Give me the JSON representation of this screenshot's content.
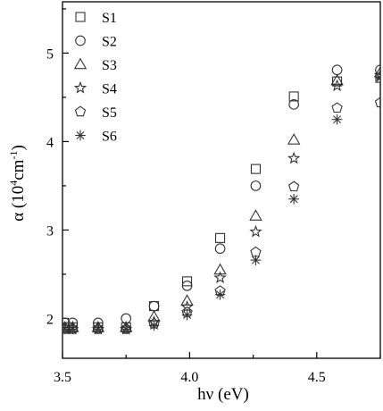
{
  "chart_data": {
    "type": "scatter",
    "title": "",
    "xlabel": "hν (eV)",
    "ylabel_main": "α (10",
    "ylabel_sup1": "4",
    "ylabel_mid": "cm",
    "ylabel_sup2": "-1",
    "ylabel_end": ")",
    "xlim": [
      3.5,
      4.75
    ],
    "ylim": [
      1.55,
      5.58
    ],
    "xticks": [
      3.5,
      4.0,
      4.5
    ],
    "xtick_labels": [
      "3.5",
      "4.0",
      "4.5"
    ],
    "yticks": [
      2,
      3,
      4,
      5
    ],
    "ytick_labels": [
      "2",
      "3",
      "4",
      "5"
    ],
    "legend_position": "top-left",
    "x": [
      3.51,
      3.54,
      3.64,
      3.75,
      3.86,
      3.99,
      4.12,
      4.26,
      4.41,
      4.58,
      4.75
    ],
    "series": [
      {
        "name": "S1",
        "marker": "square",
        "values": [
          1.9,
          1.9,
          1.9,
          1.9,
          2.14,
          2.42,
          2.91,
          3.69,
          4.51,
          4.68,
          4.72
        ]
      },
      {
        "name": "S2",
        "marker": "circle",
        "values": [
          1.95,
          1.95,
          1.95,
          2.0,
          2.14,
          2.37,
          2.79,
          3.5,
          4.42,
          4.81,
          4.81
        ]
      },
      {
        "name": "S3",
        "marker": "triangle",
        "values": [
          1.9,
          1.9,
          1.9,
          1.9,
          2.02,
          2.2,
          2.55,
          3.16,
          4.02,
          4.69,
          4.78
        ]
      },
      {
        "name": "S4",
        "marker": "star",
        "values": [
          1.88,
          1.88,
          1.88,
          1.88,
          1.96,
          2.13,
          2.46,
          2.98,
          3.81,
          4.63,
          4.75
        ]
      },
      {
        "name": "S5",
        "marker": "pentagon",
        "values": [
          1.88,
          1.88,
          1.88,
          1.88,
          1.94,
          2.07,
          2.31,
          2.75,
          3.49,
          4.38,
          4.44
        ]
      },
      {
        "name": "S6",
        "marker": "asterisk",
        "values": [
          1.88,
          1.88,
          1.88,
          1.88,
          1.92,
          2.04,
          2.27,
          2.66,
          3.35,
          4.25,
          4.72
        ]
      }
    ]
  }
}
